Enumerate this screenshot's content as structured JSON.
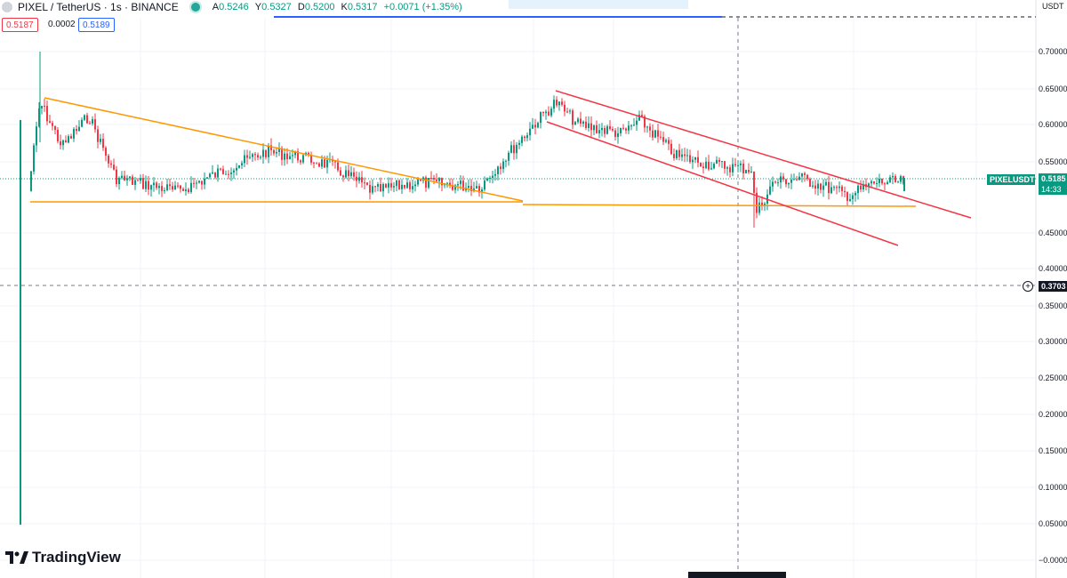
{
  "header": {
    "symbol": "PIXEL / TetherUS · 1s · BINANCE",
    "ohlc": {
      "open_label": "A",
      "open": "0.5246",
      "high_label": "Y",
      "high": "0.5327",
      "low_label": "D",
      "low": "0.5200",
      "close_label": "K",
      "close": "0.5317",
      "change": "+0.0071 (+1.35%)"
    }
  },
  "trade": {
    "sell_price": "0.5187",
    "spread": "0.0002",
    "buy_price": "0.5189"
  },
  "price_axis": {
    "unit": "USDT",
    "ticks": [
      "0.70000",
      "0.65000",
      "0.60000",
      "0.55000",
      "0.45000",
      "0.40000",
      "0.35000",
      "0.30000",
      "0.25000",
      "0.20000",
      "0.15000",
      "0.10000",
      "0.05000",
      "−0.00000"
    ],
    "last_price_symbol": "PIXELUSDT",
    "last_price": "0.5185",
    "countdown": "14:33",
    "crosshair_price": "0.3703"
  },
  "colors": {
    "up": "#089981",
    "down": "#f23645",
    "triangle_lines": "#ff9800",
    "channel_lines": "#f23645"
  },
  "logo": {
    "text": "TradingView"
  }
}
